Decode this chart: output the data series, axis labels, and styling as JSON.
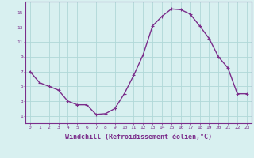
{
  "x_values": [
    0,
    1,
    2,
    3,
    4,
    5,
    6,
    7,
    8,
    9,
    10,
    11,
    12,
    13,
    14,
    15,
    16,
    17,
    18,
    19,
    20,
    21,
    22,
    23
  ],
  "y_values": [
    7,
    5.5,
    5,
    4.5,
    3,
    2.5,
    2.5,
    1.2,
    1.3,
    2,
    4,
    6.5,
    9.3,
    13.2,
    14.5,
    15.5,
    15.4,
    14.8,
    13.2,
    11.5,
    9,
    7.5,
    4,
    4
  ],
  "line_color": "#7b2d8b",
  "marker_color": "#7b2d8b",
  "bg_color": "#d8f0f0",
  "grid_color": "#b0d8d8",
  "axis_color": "#7b2d8b",
  "tick_color": "#7b2d8b",
  "xlabel": "Windchill (Refroidissement éolien,°C)",
  "xlabel_fontsize": 6.0,
  "ytick_labels": [
    "1",
    "3",
    "5",
    "7",
    "9",
    "11",
    "13",
    "15"
  ],
  "ytick_values": [
    1,
    3,
    5,
    7,
    9,
    11,
    13,
    15
  ],
  "xlim": [
    -0.5,
    23.5
  ],
  "ylim": [
    0,
    16.5
  ],
  "marker_size": 3,
  "line_width": 1.0
}
